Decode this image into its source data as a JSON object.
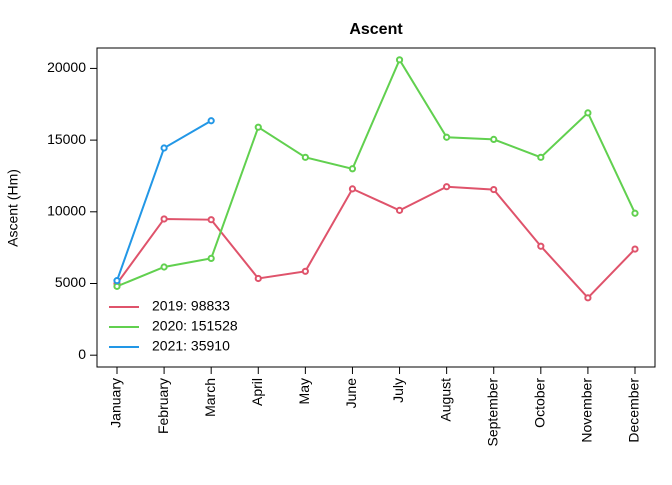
{
  "chart_data": {
    "type": "line",
    "title": "Ascent",
    "y_label": "Ascent (Hm)",
    "categories": [
      "January",
      "February",
      "March",
      "April",
      "May",
      "June",
      "July",
      "August",
      "September",
      "October",
      "November",
      "December"
    ],
    "series": [
      {
        "name": "2019: 98833",
        "color": "#DF536B",
        "values": [
          5000,
          9500,
          9450,
          5350,
          5850,
          11600,
          10100,
          11750,
          11550,
          7600,
          4000,
          7400
        ]
      },
      {
        "name": "2020: 151528",
        "color": "#61D04F",
        "values": [
          4800,
          6150,
          6750,
          15900,
          13800,
          13000,
          20600,
          15200,
          15050,
          13800,
          16900,
          9900
        ]
      },
      {
        "name": "2021: 35910",
        "color": "#2297E6",
        "values": [
          5200,
          14450,
          16350,
          null,
          null,
          null,
          null,
          null,
          null,
          null,
          null,
          null
        ]
      }
    ],
    "ylim": [
      -824,
      21424
    ],
    "yticks": [
      0,
      5000,
      10000,
      15000,
      20000
    ],
    "legend": "bottom-left"
  }
}
